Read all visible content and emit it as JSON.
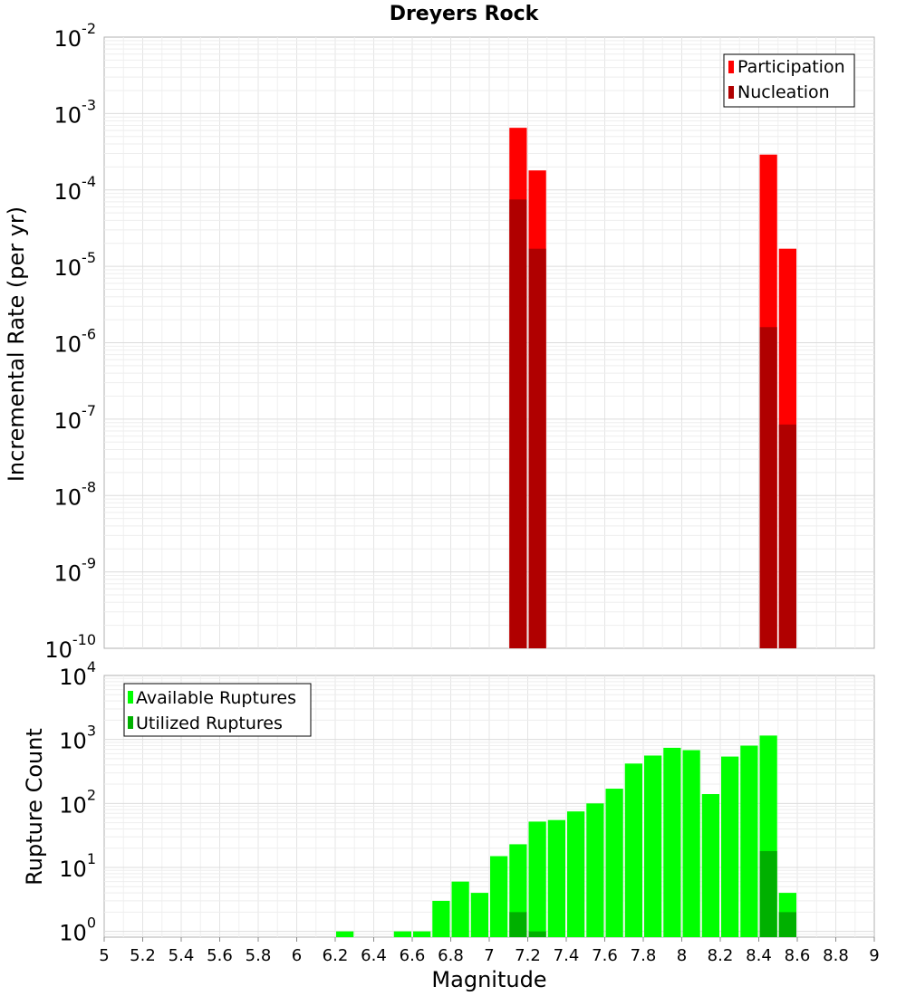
{
  "chart_data": [
    {
      "type": "bar",
      "title": "Dreyers Rock",
      "ylabel": "Incremental Rate (per yr)",
      "yscale": "log",
      "ylim_exp": [
        -10,
        -2
      ],
      "xlim": [
        5,
        9
      ],
      "y_ticks": [
        {
          "base": "10",
          "exp": "-10"
        },
        {
          "base": "10",
          "exp": "-9"
        },
        {
          "base": "10",
          "exp": "-8"
        },
        {
          "base": "10",
          "exp": "-7"
        },
        {
          "base": "10",
          "exp": "-6"
        },
        {
          "base": "10",
          "exp": "-5"
        },
        {
          "base": "10",
          "exp": "-4"
        },
        {
          "base": "10",
          "exp": "-3"
        },
        {
          "base": "10",
          "exp": "-2"
        }
      ],
      "legend_position": "top-right",
      "bar_width": 0.1,
      "grid": true,
      "series": [
        {
          "name": "Participation",
          "color": "#ff0000",
          "points": [
            [
              7.15,
              0.00065
            ],
            [
              7.25,
              0.00018
            ],
            [
              8.45,
              0.00029
            ],
            [
              8.55,
              1.7e-05
            ]
          ]
        },
        {
          "name": "Nucleation",
          "color": "#b00000",
          "points": [
            [
              7.15,
              7.5e-05
            ],
            [
              7.25,
              1.7e-05
            ],
            [
              8.45,
              1.6e-06
            ],
            [
              8.55,
              8.5e-08
            ]
          ]
        }
      ]
    },
    {
      "type": "bar",
      "ylabel": "Rupture Count",
      "xlabel": "Magnitude",
      "yscale": "log",
      "ylim_exp": [
        -0.09,
        4
      ],
      "xlim": [
        5,
        9
      ],
      "y_ticks": [
        {
          "base": "10",
          "exp": "0"
        },
        {
          "base": "10",
          "exp": "1"
        },
        {
          "base": "10",
          "exp": "2"
        },
        {
          "base": "10",
          "exp": "3"
        },
        {
          "base": "10",
          "exp": "4"
        }
      ],
      "x_ticks": [
        "5",
        "5.2",
        "5.4",
        "5.6",
        "5.8",
        "6",
        "6.2",
        "6.4",
        "6.6",
        "6.8",
        "7",
        "7.2",
        "7.4",
        "7.6",
        "7.8",
        "8",
        "8.2",
        "8.4",
        "8.6",
        "8.8",
        "9"
      ],
      "legend_position": "top-left",
      "bar_width": 0.1,
      "grid": true,
      "series": [
        {
          "name": "Available Ruptures",
          "color": "#00ff00",
          "points": [
            [
              6.25,
              1
            ],
            [
              6.55,
              1
            ],
            [
              6.65,
              1
            ],
            [
              6.75,
              3
            ],
            [
              6.85,
              6
            ],
            [
              6.95,
              4
            ],
            [
              7.05,
              15
            ],
            [
              7.15,
              23
            ],
            [
              7.25,
              52
            ],
            [
              7.35,
              55
            ],
            [
              7.45,
              75
            ],
            [
              7.55,
              100
            ],
            [
              7.65,
              170
            ],
            [
              7.75,
              420
            ],
            [
              7.85,
              560
            ],
            [
              7.95,
              740
            ],
            [
              8.05,
              680
            ],
            [
              8.15,
              140
            ],
            [
              8.25,
              540
            ],
            [
              8.35,
              800
            ],
            [
              8.45,
              1150
            ],
            [
              8.55,
              4
            ]
          ]
        },
        {
          "name": "Utilized Ruptures",
          "color": "#00b000",
          "points": [
            [
              7.15,
              2
            ],
            [
              7.25,
              1
            ],
            [
              8.45,
              18
            ],
            [
              8.55,
              2
            ]
          ]
        }
      ]
    }
  ]
}
